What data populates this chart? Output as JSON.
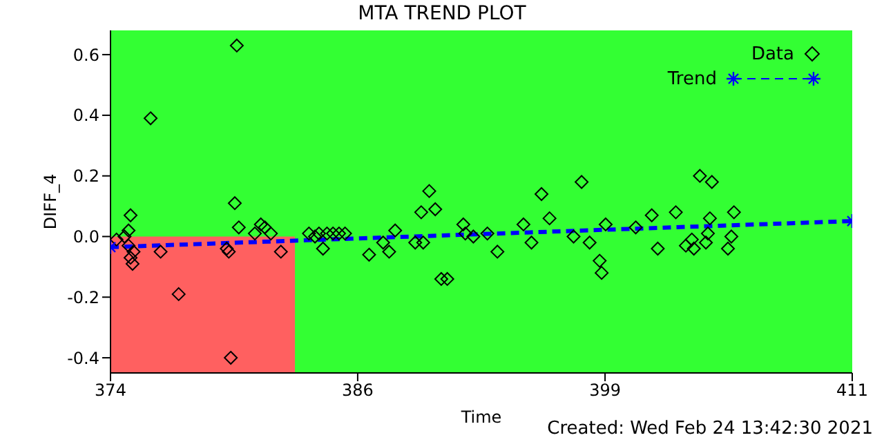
{
  "chart_data": {
    "type": "scatter",
    "title": "MTA TREND PLOT",
    "xlabel": "Time",
    "ylabel": "DIFF_4",
    "annotations": [
      "Created: Wed Feb 24 13:42:30 2021"
    ],
    "xlim": [
      374,
      411
    ],
    "xticks": [
      374,
      {
        "value": 386.33,
        "label": "386"
      },
      {
        "value": 398.67,
        "label": "399"
      },
      411
    ],
    "ylim": [
      -0.45,
      0.68
    ],
    "yticks": [
      -0.4,
      -0.2,
      {
        "value": 0,
        "label": "0.0"
      },
      0.2,
      0.4,
      0.6
    ],
    "legend": "top right",
    "bands": [
      {
        "axis": "x",
        "from": 374,
        "to": 383.2,
        "color": "#ff6060"
      }
    ],
    "series": [
      {
        "name": "Data",
        "color": "#000000",
        "marker": "diamond",
        "x": [
          380.3,
          376.0,
          375.0,
          374.9,
          374.3,
          374.7,
          374.9,
          375.15,
          375.0,
          375.1,
          376.5,
          377.4,
          380.2,
          380.4,
          379.8,
          379.9,
          380.0,
          381.2,
          381.5,
          381.7,
          382.0,
          382.5,
          383.9,
          384.2,
          384.4,
          384.6,
          384.8,
          385.1,
          385.4,
          385.7,
          386.9,
          387.6,
          387.9,
          388.2,
          389.2,
          389.5,
          389.6,
          389.9,
          390.2,
          390.5,
          390.8,
          391.6,
          391.7,
          392.1,
          392.8,
          393.3,
          394.6,
          395.0,
          395.5,
          395.9,
          397.1,
          397.5,
          397.9,
          398.4,
          398.5,
          398.7,
          400.2,
          401.0,
          401.3,
          402.2,
          402.7,
          403.0,
          403.1,
          403.4,
          403.9,
          403.8,
          403.7,
          404.0,
          404.8,
          404.97,
          405.1
        ],
        "values": [
          0.63,
          0.39,
          0.07,
          0.02,
          -0.01,
          0.0,
          -0.03,
          -0.05,
          -0.07,
          -0.09,
          -0.05,
          -0.19,
          0.11,
          0.03,
          -0.04,
          -0.05,
          -0.4,
          0.01,
          0.04,
          0.03,
          0.01,
          -0.05,
          0.01,
          0.0,
          0.01,
          -0.04,
          0.01,
          0.01,
          0.01,
          0.01,
          -0.06,
          -0.02,
          -0.05,
          0.02,
          -0.02,
          0.08,
          -0.02,
          0.15,
          0.09,
          -0.14,
          -0.14,
          0.04,
          0.01,
          0.0,
          0.01,
          -0.05,
          0.04,
          -0.02,
          0.14,
          0.06,
          0.0,
          0.18,
          -0.02,
          -0.08,
          -0.12,
          0.04,
          0.03,
          0.07,
          -0.04,
          0.08,
          -0.03,
          -0.01,
          -0.04,
          0.2,
          0.06,
          0.01,
          -0.02,
          0.18,
          -0.04,
          0.0,
          0.08
        ]
      },
      {
        "name": "Trend",
        "type": "line",
        "color": "#0000ff",
        "marker": "cross",
        "line_style": "dashed",
        "x": [
          374,
          411
        ],
        "values": [
          -0.035,
          0.051
        ]
      }
    ]
  }
}
